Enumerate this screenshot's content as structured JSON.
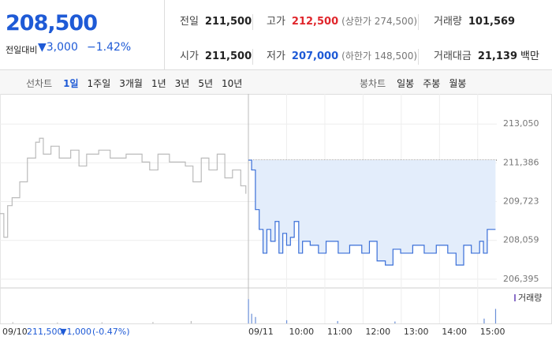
{
  "header": {
    "price": "208,500",
    "change_label": "전일대비",
    "change": "▼3,000",
    "change_pct": "−1.42%",
    "items": [
      {
        "label": "전일",
        "value": "211,500"
      },
      {
        "label": "고가",
        "value": "212,500",
        "note": "(상한가 274,500)"
      },
      {
        "label": "거래량",
        "value": "101,569"
      },
      {
        "label": "시가",
        "value": "211,500"
      },
      {
        "label": "저가",
        "value": "207,000",
        "note": "(하한가 148,500)"
      },
      {
        "label": "거래대금",
        "value": "21,139",
        "unit": "백만"
      }
    ]
  },
  "tabs": {
    "line_label": "선차트",
    "line_periods": [
      "1일",
      "1주일",
      "3개월",
      "1년",
      "3년",
      "5년",
      "10년"
    ],
    "candle_label": "봉차트",
    "candle_periods": [
      "일봉",
      "주봉",
      "월봉"
    ]
  },
  "chart_data": {
    "type": "line",
    "series": [
      {
        "color": "#bbbbbb",
        "x": [
          0,
          6,
          12,
          19,
          31,
          43,
          56,
          62,
          68,
          80,
          93,
          111,
          124,
          136,
          155,
          173,
          198,
          223,
          235,
          248,
          266,
          291,
          303,
          316,
          328,
          341,
          353,
          365,
          378,
          386
        ],
        "values": [
          209210,
          208194,
          209550,
          209890,
          210570,
          211590,
          212270,
          212440,
          211760,
          212100,
          211590,
          211930,
          211250,
          211760,
          211930,
          211590,
          211760,
          211420,
          211080,
          211760,
          211420,
          211250,
          210570,
          211590,
          211080,
          211760,
          210740,
          211080,
          210400,
          210060
        ]
      },
      {
        "color": "#3a6fd8",
        "fill": "#e3edfb",
        "x": [
          390,
          395,
          401,
          407,
          413,
          419,
          425,
          432,
          438,
          444,
          450,
          456,
          462,
          469,
          475,
          487,
          500,
          512,
          531,
          549,
          568,
          580,
          592,
          605,
          617,
          629,
          648,
          666,
          685,
          703,
          716,
          728,
          740,
          753,
          759,
          765,
          778
        ],
        "values": [
          211500,
          211080,
          209380,
          208530,
          207510,
          208530,
          208020,
          208870,
          207510,
          208360,
          207850,
          208190,
          208870,
          207510,
          208020,
          207850,
          207510,
          208020,
          207510,
          207850,
          207510,
          208020,
          207180,
          207000,
          207680,
          207510,
          207850,
          207510,
          207850,
          207510,
          207000,
          207850,
          207510,
          208020,
          207510,
          208530,
          208530
        ]
      }
    ],
    "baseline": 211500,
    "xlim": [
      0,
      780
    ],
    "ylim": [
      206020,
      214140
    ],
    "yticks": [
      {
        "value": 213050,
        "label": "213,050"
      },
      {
        "value": 211386,
        "label": "211,386"
      },
      {
        "value": 209723,
        "label": "209,723"
      },
      {
        "value": 208059,
        "label": "208,059"
      },
      {
        "value": 206395,
        "label": "206,395"
      }
    ],
    "xticks": [
      {
        "value": 0,
        "label": "09/10"
      },
      {
        "value": 390,
        "label": "09/11"
      },
      {
        "value": 450,
        "label": "10:00"
      },
      {
        "value": 510,
        "label": "11:00"
      },
      {
        "value": 570,
        "label": "12:00"
      },
      {
        "value": 630,
        "label": "13:00"
      },
      {
        "value": 690,
        "label": "14:00"
      },
      {
        "value": 750,
        "label": "15:00"
      }
    ],
    "prev_day": {
      "close": "211,500",
      "change": "▼1,000",
      "change_pct": "(-0.47%)"
    },
    "volume": {
      "label": "거래량",
      "ylim": [
        0,
        20000
      ],
      "x": [
        20,
        90,
        160,
        240,
        300,
        390,
        395,
        401,
        450,
        530,
        620,
        760,
        778
      ],
      "values": [
        800,
        600,
        700,
        900,
        1500,
        15000,
        6000,
        4000,
        2000,
        1500,
        1200,
        3000,
        9000
      ]
    }
  }
}
